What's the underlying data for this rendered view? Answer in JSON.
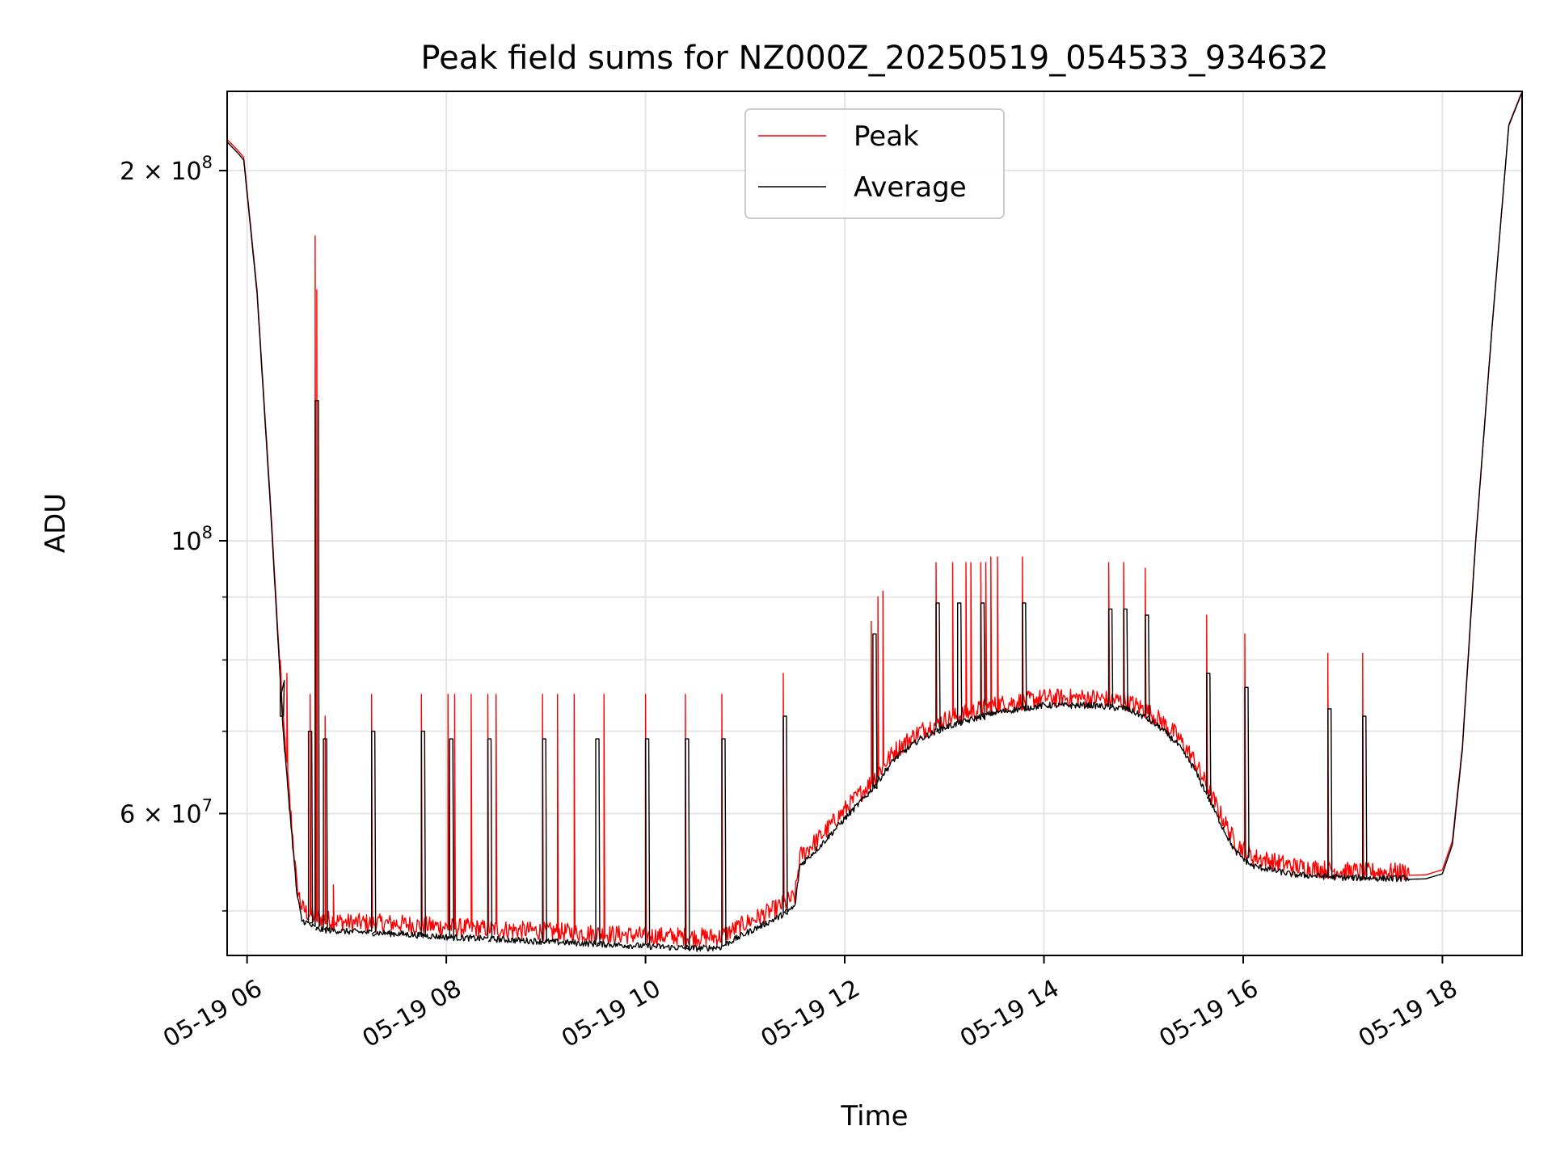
{
  "chart_data": {
    "type": "line",
    "title": "Peak field sums for NZ000Z_20250519_054533_934632",
    "xlabel": "Time",
    "ylabel": "ADU",
    "y_scale": "log",
    "ylim": [
      46000000,
      232000000
    ],
    "xlim": [
      "2025-05-19 05:48",
      "2025-05-19 18:48"
    ],
    "grid": true,
    "legend_position": "upper center",
    "colors": {
      "peak": "#ff0000",
      "average": "#000000",
      "grid": "#e5e5e5"
    },
    "x_ticks": [
      {
        "label": "05-19 06",
        "value": "2025-05-19 06:00"
      },
      {
        "label": "05-19 08",
        "value": "2025-05-19 08:00"
      },
      {
        "label": "05-19 10",
        "value": "2025-05-19 10:00"
      },
      {
        "label": "05-19 12",
        "value": "2025-05-19 12:00"
      },
      {
        "label": "05-19 14",
        "value": "2025-05-19 14:00"
      },
      {
        "label": "05-19 16",
        "value": "2025-05-19 16:00"
      },
      {
        "label": "05-19 18",
        "value": "2025-05-19 18:00"
      }
    ],
    "y_ticks": [
      {
        "mantissa": "2 × 10",
        "exponent": "8",
        "value": 200000000
      },
      {
        "mantissa": "10",
        "exponent": "8",
        "value": 100000000
      },
      {
        "mantissa": "6 × 10",
        "exponent": "7",
        "value": 60000000
      }
    ],
    "y_minor_ticks": [
      90000000,
      80000000,
      70000000,
      50000000
    ],
    "series": [
      {
        "name": "Peak",
        "x": [
          "05:48",
          "05:54",
          "05:58",
          "06:06",
          "06:14",
          "06:22",
          "06:30",
          "06:33",
          "06:36",
          "06:42",
          "07:00",
          "07:30",
          "08:00",
          "08:30",
          "09:00",
          "09:30",
          "10:00",
          "10:30",
          "10:45",
          "11:00",
          "11:20",
          "11:30",
          "11:33",
          "11:45",
          "12:00",
          "12:15",
          "12:30",
          "12:45",
          "13:00",
          "13:30",
          "14:00",
          "14:30",
          "14:50",
          "15:00",
          "15:10",
          "15:20",
          "15:30",
          "15:40",
          "15:45",
          "15:55",
          "16:05",
          "16:30",
          "17:00",
          "17:30",
          "17:50",
          "18:00",
          "18:06",
          "18:12",
          "18:20",
          "18:30",
          "18:40",
          "18:48"
        ],
        "y": [
          212000000,
          208000000,
          205000000,
          160000000,
          108000000,
          70000000,
          52000000,
          50000000,
          49500000,
          49000000,
          48600000,
          48500000,
          48200000,
          48000000,
          47800000,
          47600000,
          47400000,
          47300000,
          47300000,
          48500000,
          50000000,
          51000000,
          55000000,
          57000000,
          60000000,
          63000000,
          67000000,
          69500000,
          71000000,
          73000000,
          74000000,
          74000000,
          73500000,
          72500000,
          71000000,
          69000000,
          66000000,
          62000000,
          60000000,
          56500000,
          55000000,
          54000000,
          53500000,
          53400000,
          53500000,
          54000000,
          57000000,
          68000000,
          100000000,
          150000000,
          218000000,
          232000000
        ],
        "spikes": [
          {
            "x": "06:20",
            "y": 80000000
          },
          {
            "x": "06:24",
            "y": 78000000
          },
          {
            "x": "06:38",
            "y": 75000000
          },
          {
            "x": "06:41",
            "y": 177000000
          },
          {
            "x": "06:42",
            "y": 160000000
          },
          {
            "x": "06:47",
            "y": 72000000
          },
          {
            "x": "06:52",
            "y": 52500000
          },
          {
            "x": "07:15",
            "y": 75000000
          },
          {
            "x": "07:45",
            "y": 75000000
          },
          {
            "x": "08:01",
            "y": 75000000
          },
          {
            "x": "08:05",
            "y": 75000000
          },
          {
            "x": "08:15",
            "y": 75000000
          },
          {
            "x": "08:25",
            "y": 75000000
          },
          {
            "x": "08:30",
            "y": 75000000
          },
          {
            "x": "08:58",
            "y": 75000000
          },
          {
            "x": "09:07",
            "y": 75000000
          },
          {
            "x": "09:17",
            "y": 75000000
          },
          {
            "x": "09:35",
            "y": 75000000
          },
          {
            "x": "10:00",
            "y": 75000000
          },
          {
            "x": "10:24",
            "y": 75000000
          },
          {
            "x": "10:46",
            "y": 75000000
          },
          {
            "x": "11:23",
            "y": 78000000
          },
          {
            "x": "12:16",
            "y": 86000000
          },
          {
            "x": "12:20",
            "y": 90000000
          },
          {
            "x": "12:23",
            "y": 91000000
          },
          {
            "x": "12:55",
            "y": 96000000
          },
          {
            "x": "13:05",
            "y": 96000000
          },
          {
            "x": "13:13",
            "y": 96000000
          },
          {
            "x": "13:16",
            "y": 96000000
          },
          {
            "x": "13:22",
            "y": 96000000
          },
          {
            "x": "13:25",
            "y": 96000000
          },
          {
            "x": "13:28",
            "y": 97000000
          },
          {
            "x": "13:32",
            "y": 97000000
          },
          {
            "x": "13:47",
            "y": 97000000
          },
          {
            "x": "14:39",
            "y": 96000000
          },
          {
            "x": "14:48",
            "y": 96000000
          },
          {
            "x": "15:01",
            "y": 95000000
          },
          {
            "x": "15:38",
            "y": 87000000
          },
          {
            "x": "16:01",
            "y": 84000000
          },
          {
            "x": "16:51",
            "y": 81000000
          },
          {
            "x": "17:12",
            "y": 81000000
          }
        ]
      },
      {
        "name": "Average",
        "x": [
          "05:48",
          "05:54",
          "05:58",
          "06:06",
          "06:14",
          "06:22",
          "06:30",
          "06:33",
          "06:36",
          "06:42",
          "07:00",
          "07:30",
          "08:00",
          "08:30",
          "09:00",
          "09:30",
          "10:00",
          "10:30",
          "10:45",
          "11:00",
          "11:20",
          "11:30",
          "11:33",
          "11:45",
          "12:00",
          "12:15",
          "12:30",
          "12:45",
          "13:00",
          "13:30",
          "14:00",
          "14:30",
          "14:50",
          "15:00",
          "15:10",
          "15:20",
          "15:30",
          "15:40",
          "15:45",
          "15:55",
          "16:05",
          "16:30",
          "17:00",
          "17:30",
          "17:50",
          "18:00",
          "18:06",
          "18:12",
          "18:20",
          "18:30",
          "18:40",
          "18:48"
        ],
        "y": [
          211000000,
          207000000,
          204000000,
          159000000,
          107000000,
          69000000,
          51500000,
          49000000,
          48800000,
          48200000,
          48000000,
          47800000,
          47500000,
          47300000,
          47100000,
          46900000,
          46700000,
          46500000,
          46600000,
          47800000,
          49300000,
          50300000,
          54300000,
          56300000,
          59300000,
          62300000,
          66300000,
          68800000,
          70300000,
          72300000,
          73300000,
          73300000,
          72800000,
          71800000,
          70300000,
          68300000,
          65300000,
          61300000,
          59300000,
          55800000,
          54300000,
          53400000,
          53100000,
          53000000,
          53100000,
          53600000,
          56600000,
          67600000,
          99600000,
          149600000,
          217600000,
          231600000
        ],
        "plateaus": [
          {
            "x": "06:20",
            "y": 72000000
          },
          {
            "x": "06:37",
            "y": 70000000
          },
          {
            "x": "06:41",
            "y": 130000000
          },
          {
            "x": "06:46",
            "y": 69000000
          },
          {
            "x": "07:15",
            "y": 70000000
          },
          {
            "x": "07:45",
            "y": 70000000
          },
          {
            "x": "08:02",
            "y": 69000000
          },
          {
            "x": "08:25",
            "y": 69000000
          },
          {
            "x": "08:58",
            "y": 69000000
          },
          {
            "x": "09:30",
            "y": 69000000
          },
          {
            "x": "10:00",
            "y": 69000000
          },
          {
            "x": "10:24",
            "y": 69000000
          },
          {
            "x": "10:46",
            "y": 69000000
          },
          {
            "x": "11:23",
            "y": 72000000
          },
          {
            "x": "12:17",
            "y": 84000000
          },
          {
            "x": "12:55",
            "y": 89000000
          },
          {
            "x": "13:08",
            "y": 89000000
          },
          {
            "x": "13:22",
            "y": 89000000
          },
          {
            "x": "13:47",
            "y": 89000000
          },
          {
            "x": "14:39",
            "y": 88000000
          },
          {
            "x": "14:48",
            "y": 88000000
          },
          {
            "x": "15:01",
            "y": 87000000
          },
          {
            "x": "15:38",
            "y": 78000000
          },
          {
            "x": "16:01",
            "y": 76000000
          },
          {
            "x": "16:51",
            "y": 73000000
          },
          {
            "x": "17:12",
            "y": 72000000
          }
        ]
      }
    ]
  }
}
